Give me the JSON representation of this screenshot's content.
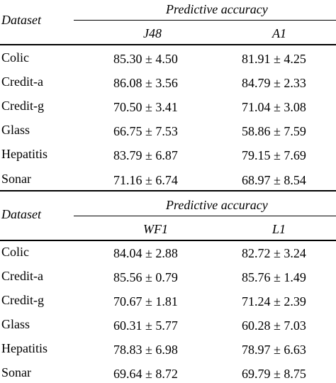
{
  "tables": [
    {
      "header": {
        "dataset_label": "Dataset",
        "group_label": "Predictive accuracy",
        "columns": [
          "J48",
          "A1"
        ]
      },
      "rows": [
        {
          "name": "Colic",
          "values": [
            "85.30 ± 4.50",
            "81.91 ± 4.25"
          ]
        },
        {
          "name": "Credit-a",
          "values": [
            "86.08 ± 3.56",
            "84.79 ± 2.33"
          ]
        },
        {
          "name": "Credit-g",
          "values": [
            "70.50 ± 3.41",
            "71.04 ± 3.08"
          ]
        },
        {
          "name": "Glass",
          "values": [
            "66.75 ± 7.53",
            "58.86 ± 7.59"
          ]
        },
        {
          "name": "Hepatitis",
          "values": [
            "83.79 ± 6.87",
            "79.15 ± 7.69"
          ]
        },
        {
          "name": "Sonar",
          "values": [
            "71.16 ± 6.74",
            "68.97 ± 8.54"
          ]
        }
      ]
    },
    {
      "header": {
        "dataset_label": "Dataset",
        "group_label": "Predictive accuracy",
        "columns": [
          "WF1",
          "L1"
        ]
      },
      "rows": [
        {
          "name": "Colic",
          "values": [
            "84.04 ± 2.88",
            "82.72 ± 3.24"
          ]
        },
        {
          "name": "Credit-a",
          "values": [
            "85.56 ± 0.79",
            "85.76 ± 1.49"
          ]
        },
        {
          "name": "Credit-g",
          "values": [
            "70.67 ± 1.81",
            "71.24 ± 2.39"
          ]
        },
        {
          "name": "Glass",
          "values": [
            "60.31 ± 5.77",
            "60.28 ± 7.03"
          ]
        },
        {
          "name": "Hepatitis",
          "values": [
            "78.83 ± 6.98",
            "78.97 ± 6.63"
          ]
        },
        {
          "name": "Sonar",
          "values": [
            "69.64 ± 8.72",
            "69.79 ± 8.75"
          ]
        }
      ]
    }
  ]
}
